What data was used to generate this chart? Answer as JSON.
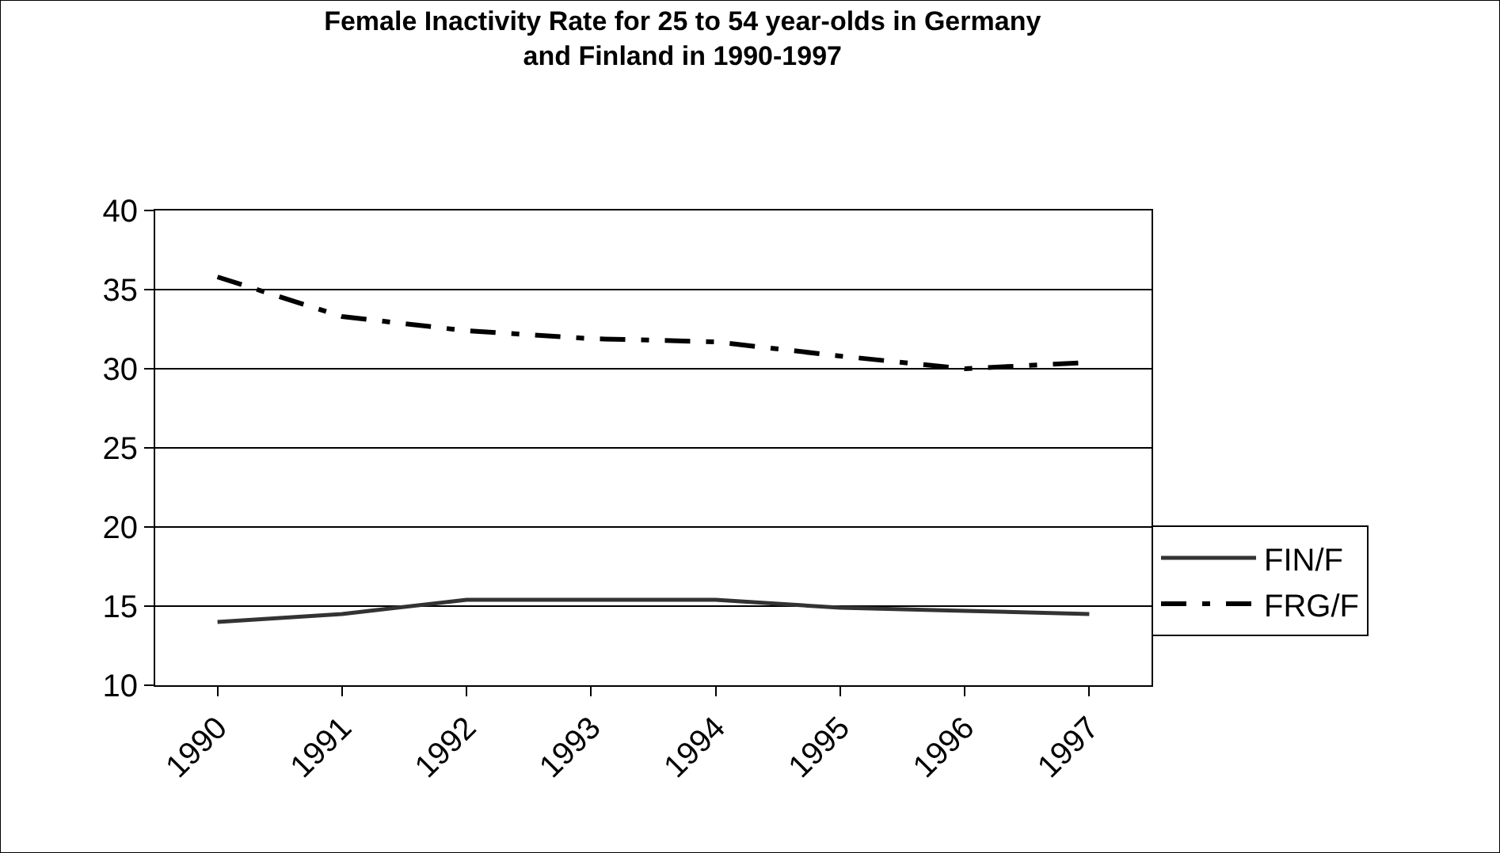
{
  "chart_data": {
    "type": "line",
    "title": "Female Inactivity Rate for 25 to 54 year-olds in Germany\nand Finland in 1990-1997",
    "categories": [
      "1990",
      "1991",
      "1992",
      "1993",
      "1994",
      "1995",
      "1996",
      "1997"
    ],
    "series": [
      {
        "name": "FIN/F",
        "color": "#333333",
        "line_style": "solid",
        "values": [
          14.0,
          14.5,
          15.4,
          15.4,
          15.4,
          14.9,
          14.7,
          14.5
        ]
      },
      {
        "name": "FRG/F",
        "color": "#000000",
        "line_style": "dashed",
        "values": [
          35.8,
          33.3,
          32.4,
          31.9,
          31.7,
          30.8,
          30.0,
          30.4
        ]
      }
    ],
    "ylim": [
      10,
      40
    ],
    "yticks": [
      10,
      15,
      20,
      25,
      30,
      35,
      40
    ],
    "grid": "y",
    "legend": "right",
    "marker": "none"
  }
}
